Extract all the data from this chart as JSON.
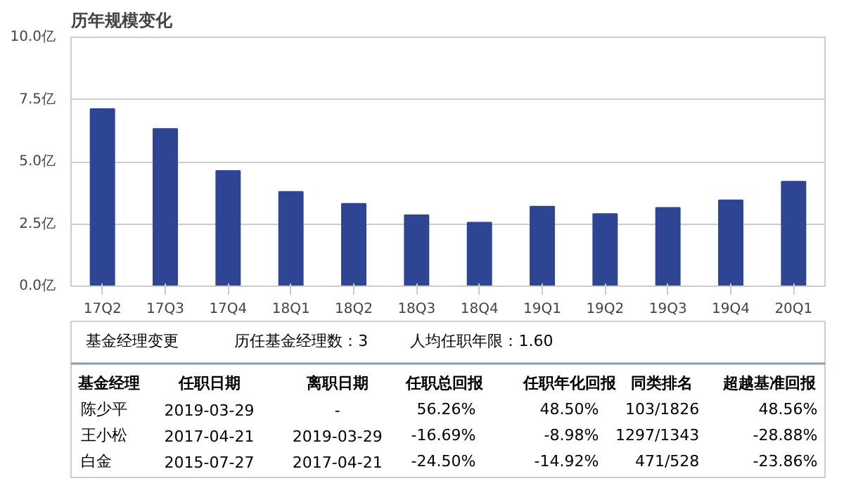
{
  "chart_data": {
    "type": "bar",
    "title": "历年规模变化",
    "categories": [
      "17Q2",
      "17Q3",
      "17Q4",
      "18Q1",
      "18Q2",
      "18Q3",
      "18Q4",
      "19Q1",
      "19Q2",
      "19Q3",
      "19Q4",
      "20Q1"
    ],
    "values": [
      7.12,
      6.32,
      4.63,
      3.79,
      3.31,
      2.85,
      2.56,
      3.2,
      2.9,
      3.15,
      3.45,
      4.2
    ],
    "color": "#2e4593",
    "ylim": [
      0,
      10
    ],
    "yticks": [
      {
        "value": 0,
        "label": "0.0亿"
      },
      {
        "value": 2.5,
        "label": "2.5亿"
      },
      {
        "value": 5,
        "label": "5.0亿"
      },
      {
        "value": 7.5,
        "label": "7.5亿"
      },
      {
        "value": 10,
        "label": "10.0亿"
      }
    ],
    "grid": "y",
    "annotations": [
      "基金经理变更",
      "历任基金经理数：3",
      "人均任职年限：1.60",
      "基金经理",
      "任职日期",
      "离职日期",
      "任职总回报",
      "任职年化回报",
      "同类排名",
      "超越基准回报",
      "陈少平",
      "2019-03-29",
      "-",
      "56.26%",
      "48.50%",
      "103/1826",
      "48.56%",
      "王小松",
      "2017-04-21",
      "2019-03-29",
      "-16.69%",
      "-8.98%",
      "1297/1343",
      "-28.88%",
      "白金",
      "2015-07-27",
      "2017-04-21",
      "-24.50%",
      "-14.92%",
      "471/528",
      "-23.86%"
    ]
  }
}
